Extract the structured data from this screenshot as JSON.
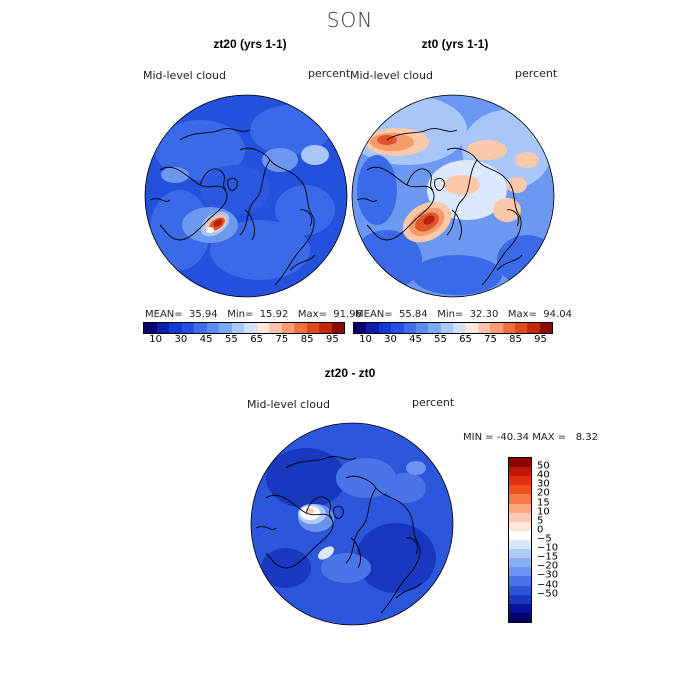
{
  "season": "SON",
  "panels": [
    {
      "title": "zt20 (yrs 1-1)",
      "field": "Mid-level cloud",
      "units": "percent",
      "mean": "35.94",
      "min": "15.92",
      "max": "91.96"
    },
    {
      "title": "zt0 (yrs 1-1)",
      "field": "Mid-level cloud",
      "units": "percent",
      "mean": "55.84",
      "min": "32.30",
      "max": "94.04"
    }
  ],
  "diff": {
    "title": "zt20 - zt0",
    "field": "Mid-level cloud",
    "units": "percent",
    "min": "-40.34",
    "max": "8.32"
  },
  "stat_labels": {
    "mean": "MEAN=",
    "min": "Min=",
    "max": "Max=",
    "dmin": "MIN =",
    "dmax": "MAX ="
  },
  "colorbar": {
    "colors": [
      "#08006e",
      "#0a1ea8",
      "#1438d2",
      "#2050e6",
      "#3c6ef0",
      "#5a8cf5",
      "#7ea8f8",
      "#a8c8fb",
      "#d2e2fd",
      "#fde8dc",
      "#fbc4a8",
      "#f89a74",
      "#f0703e",
      "#e04a18",
      "#c02a0a",
      "#8c0a04"
    ],
    "ticks": [
      "10",
      "30",
      "45",
      "55",
      "65",
      "75",
      "85",
      "95"
    ]
  },
  "diff_colorbar": {
    "colors": [
      "#8c0000",
      "#c01808",
      "#e03010",
      "#f05020",
      "#f87a4a",
      "#fba680",
      "#fccab0",
      "#fde8dc",
      "#ffffff",
      "#dbe8fc",
      "#b0ccf8",
      "#8aaef2",
      "#6a92ee",
      "#4a74e8",
      "#2c56dc",
      "#1838c0",
      "#08129a",
      "#05006e"
    ],
    "ticks": [
      "50",
      "40",
      "30",
      "20",
      "15",
      "10",
      "5",
      "0",
      "−5",
      "−10",
      "−15",
      "−20",
      "−30",
      "−40",
      "−50"
    ]
  },
  "map_palette": {
    "low": "#2350dd",
    "mid1": "#3a6ae8",
    "mid2": "#6d98f2",
    "light": "#a9c6f8",
    "pale": "#dce8fc",
    "warm1": "#fbc9a9",
    "warm2": "#f59a6a",
    "hot": "#e2542a",
    "core": "#b52010"
  }
}
